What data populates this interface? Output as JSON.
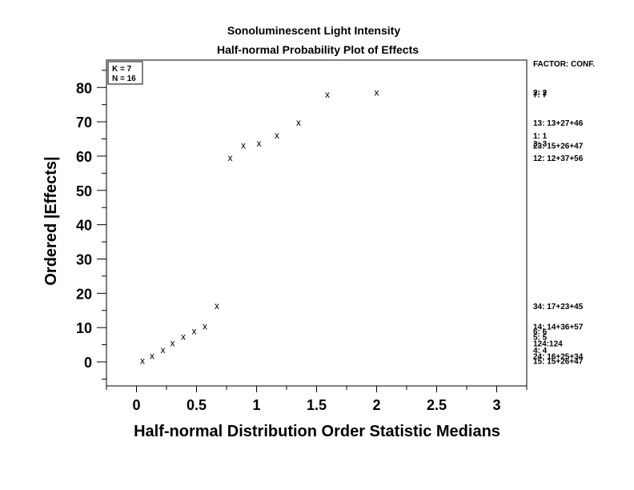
{
  "chart_data": {
    "type": "scatter",
    "title": "Sonoluminescent Light Intensity",
    "subtitle": "Half-normal Probability Plot of Effects",
    "xlabel": "Half-normal Distribution Order Statistic Medians",
    "ylabel": "Ordered |Effects|",
    "xlim": [
      -0.25,
      3.25
    ],
    "ylim": [
      -7,
      88
    ],
    "x_ticks": [
      0,
      0.5,
      1,
      1.5,
      2,
      2.5,
      3
    ],
    "x_tick_labels": [
      "0",
      "0.5",
      "1",
      "1.5",
      "2",
      "2.5",
      "3"
    ],
    "y_ticks": [
      0,
      10,
      20,
      30,
      40,
      50,
      60,
      70,
      80
    ],
    "y_tick_labels": [
      "0",
      "10",
      "20",
      "30",
      "40",
      "50",
      "60",
      "70",
      "80"
    ],
    "marker": "x",
    "points": [
      {
        "x": 0.05,
        "y": 0.4
      },
      {
        "x": 0.13,
        "y": 1.8
      },
      {
        "x": 0.22,
        "y": 3.5
      },
      {
        "x": 0.3,
        "y": 5.5
      },
      {
        "x": 0.39,
        "y": 7.4
      },
      {
        "x": 0.48,
        "y": 9.0
      },
      {
        "x": 0.57,
        "y": 10.4
      },
      {
        "x": 0.67,
        "y": 16.3
      },
      {
        "x": 0.78,
        "y": 59.5
      },
      {
        "x": 0.89,
        "y": 63.1
      },
      {
        "x": 1.02,
        "y": 63.7
      },
      {
        "x": 1.17,
        "y": 66.1
      },
      {
        "x": 1.35,
        "y": 69.8
      },
      {
        "x": 1.59,
        "y": 78.0
      },
      {
        "x": 2.0,
        "y": 78.5
      }
    ],
    "legend_box": {
      "lines": [
        "K = 7",
        "N = 16"
      ],
      "placement": "top-left"
    },
    "factor_header": "FACTOR: CONF.",
    "factor_labels": [
      {
        "text": "2:   2",
        "y": 78.7
      },
      {
        "text": "7:   7",
        "y": 78.1
      },
      {
        "text": "13:  13+27+46",
        "y": 69.8
      },
      {
        "text": "1:   1",
        "y": 66.1
      },
      {
        "text": "3:   3",
        "y": 63.7
      },
      {
        "text": "23:  15+26+47",
        "y": 63.1
      },
      {
        "text": "12:  12+37+56",
        "y": 59.5
      },
      {
        "text": "34:  17+23+45",
        "y": 16.3
      },
      {
        "text": "14:  14+36+57",
        "y": 10.4
      },
      {
        "text": "6:   6",
        "y": 9.0
      },
      {
        "text": "5:   5",
        "y": 7.4
      },
      {
        "text": "124:124",
        "y": 5.5
      },
      {
        "text": "4:   4",
        "y": 3.5
      },
      {
        "text": "24:  16+25+34",
        "y": 1.8
      },
      {
        "text": "15:  15+26+47",
        "y": 0.4
      }
    ]
  }
}
